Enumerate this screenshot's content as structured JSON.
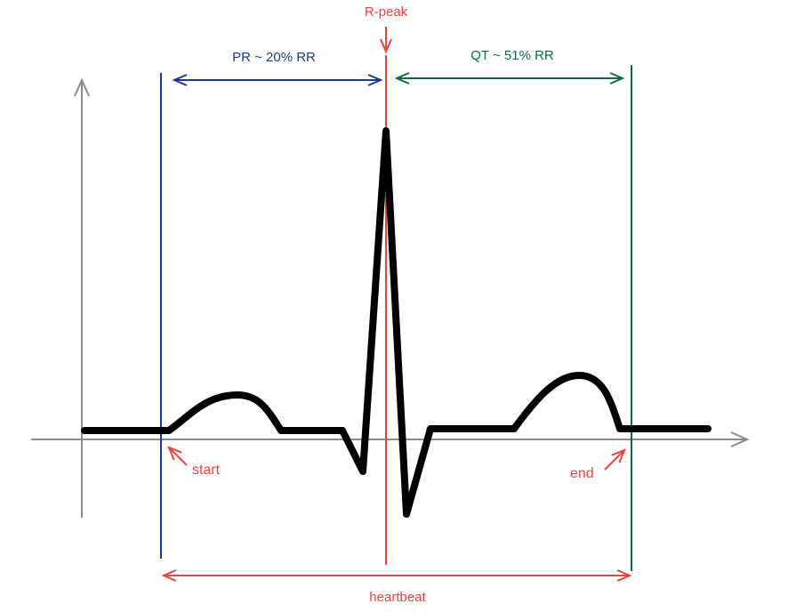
{
  "labels": {
    "r_peak": "R-peak",
    "pr": "PR ~ 20% RR",
    "qt": "QT ~  51% RR",
    "start": "start",
    "end": "end",
    "heartbeat": "heartbeat"
  },
  "colors": {
    "red": "#e8453c",
    "blue": "#1a3a8c",
    "green": "#0f6b45",
    "axis": "#8c8c8c",
    "waveform": "#000000"
  }
}
